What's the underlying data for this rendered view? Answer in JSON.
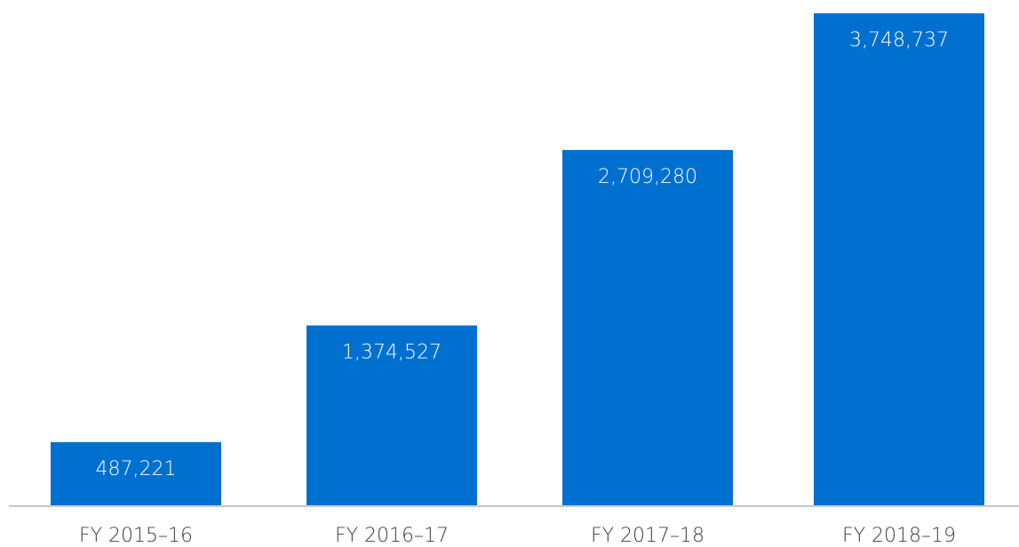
{
  "chart_data": {
    "type": "bar",
    "categories": [
      "FY 2015–16",
      "FY 2016–17",
      "FY 2017–18",
      "FY 2018–19"
    ],
    "values": [
      487221,
      1374527,
      2709280,
      3748737
    ],
    "value_labels": [
      "487,221",
      "1,374,527",
      "2,709,280",
      "3,748,737"
    ],
    "title": "",
    "xlabel": "",
    "ylabel": "",
    "ylim": [
      0,
      3748737
    ],
    "grid": false,
    "legend": "none",
    "bar_color": "#0070d0",
    "label_color": "#ffffff",
    "tick_color": "#404040",
    "axis_color": "#c8c8c8"
  }
}
